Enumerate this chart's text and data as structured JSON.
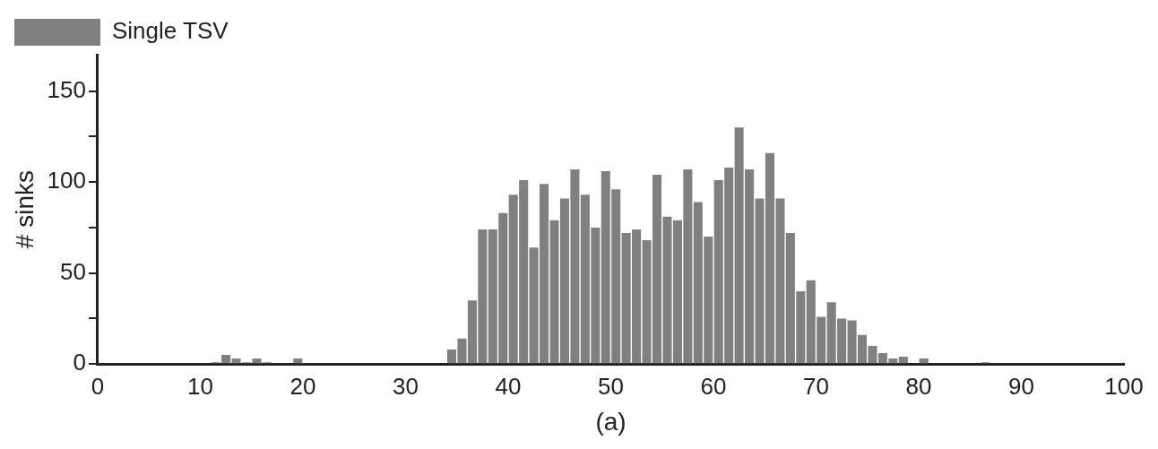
{
  "chart_data": {
    "type": "histogram",
    "xlabel": "(a)",
    "ylabel": "# sinks",
    "bins": [
      0,
      1,
      2,
      3,
      4,
      5,
      6,
      7,
      8,
      9,
      10,
      11,
      12,
      13,
      14,
      15,
      16,
      17,
      18,
      19,
      20,
      21,
      22,
      23,
      24,
      25,
      26,
      27,
      28,
      29,
      30,
      31,
      32,
      33,
      34,
      35,
      36,
      37,
      38,
      39,
      40,
      41,
      42,
      43,
      44,
      45,
      46,
      47,
      48,
      49,
      50,
      51,
      52,
      53,
      54,
      55,
      56,
      57,
      58,
      59,
      60,
      61,
      62,
      63,
      64,
      65,
      66,
      67,
      68,
      69,
      70,
      71,
      72,
      73,
      74,
      75,
      76,
      77,
      78,
      79,
      80,
      81,
      82,
      83,
      84,
      85,
      86,
      87,
      88,
      89,
      90,
      91,
      92,
      93,
      94,
      95,
      96,
      97,
      98,
      99,
      100
    ],
    "series": [
      {
        "name": "Single TSV",
        "color": "#808080",
        "values": [
          0,
          0,
          0,
          0,
          0,
          0,
          0,
          0,
          0,
          0,
          0,
          1,
          5,
          3,
          1,
          3,
          1,
          0,
          0,
          3,
          0,
          0,
          0,
          0,
          0,
          0,
          0,
          0,
          0,
          0,
          0,
          0,
          0,
          0,
          8,
          14,
          35,
          74,
          74,
          83,
          93,
          101,
          64,
          99,
          79,
          91,
          107,
          93,
          75,
          106,
          96,
          72,
          74,
          68,
          104,
          81,
          79,
          107,
          89,
          70,
          101,
          108,
          130,
          107,
          91,
          116,
          91,
          72,
          40,
          46,
          26,
          34,
          25,
          24,
          16,
          10,
          6,
          3,
          4,
          0,
          3,
          0,
          0,
          0,
          0,
          0,
          1,
          0,
          0,
          0,
          0,
          0,
          0,
          0,
          0,
          0,
          0,
          0,
          0,
          0
        ]
      }
    ],
    "xlim": [
      0,
      100
    ],
    "xticks": [
      0,
      10,
      20,
      30,
      40,
      50,
      60,
      70,
      80,
      90,
      100
    ],
    "ylim": [
      0,
      170
    ],
    "yticks": [
      0,
      {
        "value": 25,
        "label": null
      },
      50,
      {
        "value": 75,
        "label": null
      },
      100,
      {
        "value": 125,
        "label": null
      },
      150
    ],
    "grid": false,
    "legend": "top left"
  }
}
